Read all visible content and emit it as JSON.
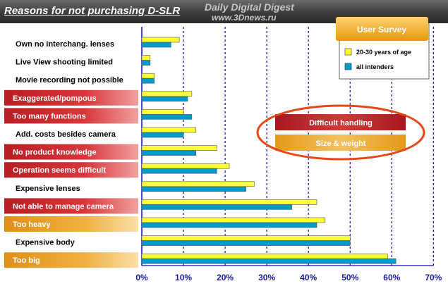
{
  "header": {
    "title": "Reasons for not purchasing D-SLR",
    "watermark_line1": "Daily Digital Digest",
    "watermark_line2": "www.3Dnews.ru"
  },
  "badge": {
    "text": "User Survey"
  },
  "callouts": {
    "first": "Difficult handling",
    "second": "Size & weight"
  },
  "colors": {
    "series_young": "#ffff33",
    "series_all": "#0099cc",
    "pill_red": "#c0282c",
    "pill_orange": "#e8a020",
    "badge": "#f0a81e",
    "grid": "#1010a0",
    "ellipse": "#e84818"
  },
  "chart_data": {
    "type": "bar",
    "orientation": "horizontal",
    "categories": [
      "Own no interchang. lenses",
      "Live View shooting limited",
      "Movie recording not possible",
      "Exaggerated/pompous",
      "Too many functions",
      "Add. costs besides camera",
      "No product knowledge",
      "Operation seems difficult",
      "Expensive lenses",
      "Not able to manage camera",
      "Too heavy",
      "Expensive body",
      "Too big"
    ],
    "category_highlight": [
      "none",
      "none",
      "none",
      "red",
      "red",
      "none",
      "red",
      "red",
      "none",
      "red",
      "orange",
      "none",
      "orange"
    ],
    "series": [
      {
        "name": "20-30 years of age",
        "values": [
          9,
          2,
          3,
          12,
          10,
          13,
          18,
          21,
          27,
          42,
          44,
          50,
          59
        ]
      },
      {
        "name": "all intenders",
        "values": [
          7,
          2,
          3,
          11,
          12,
          10,
          13,
          18,
          25,
          36,
          42,
          50,
          61
        ]
      }
    ],
    "xlim": [
      0,
      70
    ],
    "ticks": [
      "0%",
      "10%",
      "20%",
      "30%",
      "40%",
      "50%",
      "60%",
      "70%"
    ],
    "xlabel": "",
    "ylabel": "",
    "grid": "vertical dashed",
    "legend_position": "top-right"
  }
}
